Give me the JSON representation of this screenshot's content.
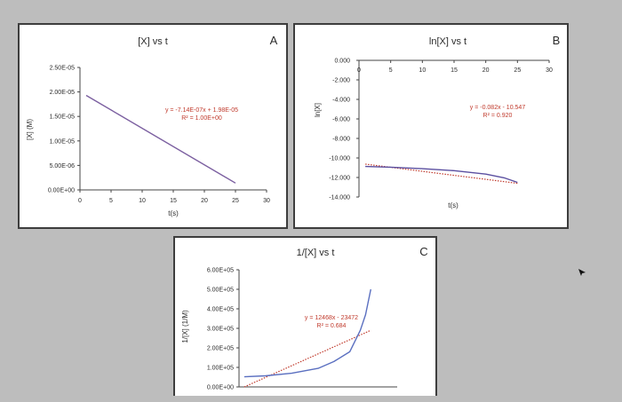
{
  "chart_data": [
    {
      "id": "A",
      "type": "line",
      "panel_letter": "A",
      "title": "[X] vs t",
      "xlabel": "t(s)",
      "ylabel": "[X] (M)",
      "xlim": [
        0,
        30
      ],
      "ylim": [
        0,
        2.5e-05
      ],
      "x_ticks": [
        0,
        5,
        10,
        15,
        20,
        25,
        30
      ],
      "x_tick_labels": [
        "0",
        "5",
        "10",
        "15",
        "20",
        "25",
        "30"
      ],
      "y_ticks": [
        0,
        5e-06,
        1e-05,
        1.5e-05,
        2e-05,
        2.5e-05
      ],
      "y_tick_labels": [
        "0.00E+00",
        "5.00E-06",
        "1.00E-05",
        "1.50E-05",
        "2.00E-05",
        "2.50E-05"
      ],
      "grid": false,
      "series": [
        {
          "x": [
            1,
            25
          ],
          "y": [
            1.93e-05,
            1.4e-06
          ],
          "color": "#7b5fa0"
        }
      ],
      "annotation": {
        "line1": "y = -7.14E-07x + 1.98E-05",
        "line2": "R² = 1.00E+00",
        "color": "#c0392b"
      }
    },
    {
      "id": "B",
      "type": "line",
      "panel_letter": "B",
      "title": "ln[X] vs t",
      "xlabel": "t(s)",
      "ylabel": "ln[X]",
      "xlim": [
        0,
        30
      ],
      "ylim": [
        -14,
        0
      ],
      "x_ticks": [
        0,
        5,
        10,
        15,
        20,
        25,
        30
      ],
      "x_tick_labels": [
        "0",
        "5",
        "10",
        "15",
        "20",
        "25",
        "30"
      ],
      "y_ticks": [
        0,
        -2,
        -4,
        -6,
        -8,
        -10,
        -12,
        -14
      ],
      "y_tick_labels": [
        "0.000",
        "-2.000",
        "-4.000",
        "-6.000",
        "-8.000",
        "-10.000",
        "-12.000",
        "-14.000"
      ],
      "grid": false,
      "series": [
        {
          "x": [
            1,
            5,
            10,
            15,
            20,
            23,
            25
          ],
          "y": [
            -10.87,
            -10.95,
            -11.1,
            -11.3,
            -11.65,
            -12.05,
            -12.5
          ],
          "color": "#5b4fa0"
        }
      ],
      "trendline": {
        "x": [
          1,
          25
        ],
        "y": [
          -10.63,
          -12.6
        ],
        "color": "#c0392b"
      },
      "annotation": {
        "line1": "y = -0.082x - 10.547",
        "line2": "R² = 0.920",
        "color": "#c0392b"
      }
    },
    {
      "id": "C",
      "type": "line",
      "panel_letter": "C",
      "title": "1/[X] vs t",
      "xlabel": "",
      "ylabel": "1/[X] (1/M)",
      "xlim": [
        0,
        30
      ],
      "ylim": [
        0,
        600000
      ],
      "x_ticks": [],
      "x_tick_labels": [],
      "y_ticks": [
        0,
        100000,
        200000,
        300000,
        400000,
        500000,
        600000
      ],
      "y_tick_labels": [
        "0.00E+00",
        "1.00E+05",
        "2.00E+05",
        "3.00E+05",
        "4.00E+05",
        "5.00E+05",
        "6.00E+05"
      ],
      "grid": false,
      "series": [
        {
          "x": [
            1,
            5,
            10,
            15,
            18,
            21,
            23,
            24,
            25
          ],
          "y": [
            52000,
            57000,
            70000,
            95000,
            130000,
            180000,
            290000,
            370000,
            500000
          ],
          "color": "#5a6fc0"
        }
      ],
      "trendline": {
        "x": [
          1,
          25
        ],
        "y": [
          0,
          290000
        ],
        "color": "#c0392b"
      },
      "annotation": {
        "line1": "y = 12468x - 23472",
        "line2": "R² = 0.684",
        "color": "#c0392b"
      }
    }
  ]
}
